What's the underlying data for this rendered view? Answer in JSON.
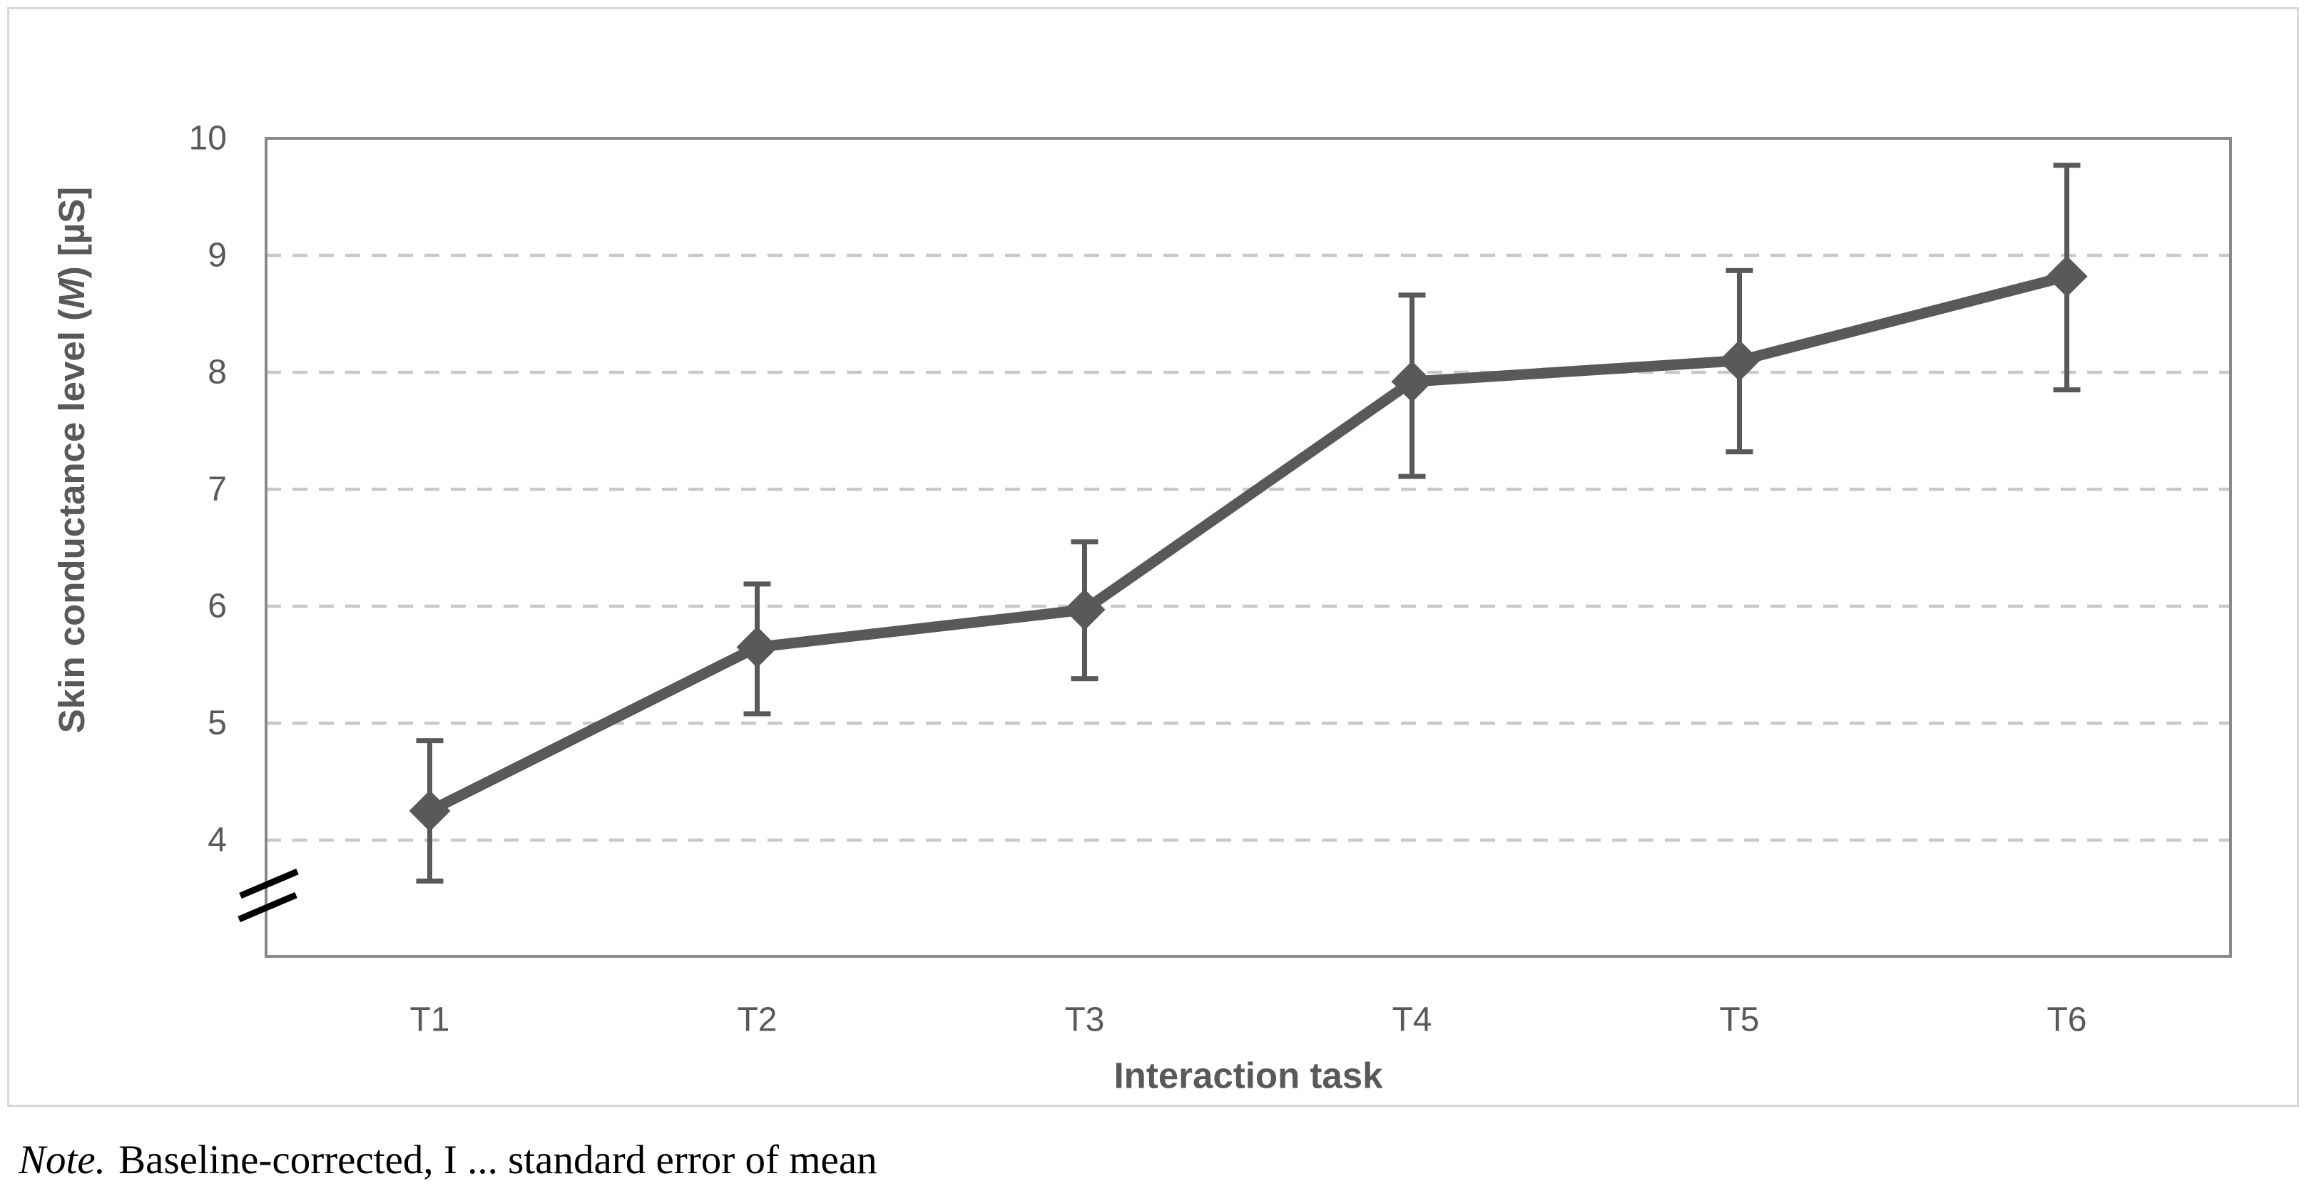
{
  "figure": {
    "kind": "line chart with error bars",
    "background": "#ffffff"
  },
  "chart_data": {
    "type": "line",
    "categories": [
      "T1",
      "T2",
      "T3",
      "T4",
      "T5",
      "T6"
    ],
    "series": [
      {
        "name": "Skin conductance level (M)",
        "values": [
          4.25,
          5.65,
          5.97,
          7.92,
          8.1,
          8.82
        ],
        "error_upper": [
          4.85,
          6.19,
          6.55,
          8.66,
          8.87,
          9.77
        ],
        "error_lower": [
          3.65,
          5.08,
          5.38,
          7.11,
          7.32,
          7.85
        ]
      }
    ],
    "title": "",
    "xlabel": "Interaction task",
    "ylabel": "Skin conductance level (M) [µS]",
    "ylabel_parts": {
      "prefix": "Skin conductance level (",
      "italic": "M",
      "suffix": ") [µS]"
    },
    "yticks": [
      4,
      5,
      6,
      7,
      8,
      9,
      10
    ],
    "ylim": [
      4,
      10
    ],
    "axis_break": true,
    "grid": "horizontal-dashed",
    "legend": false,
    "marker": "diamond",
    "colors": {
      "series": "#595959",
      "gridline": "#c9c9c9",
      "plot_border": "#898989",
      "outer_frame": "#d9d9d9",
      "tick_label": "#595959",
      "axis_title": "#595959",
      "break_mark": "#000000",
      "note": "#000000",
      "background": "#ffffff"
    }
  },
  "note": {
    "label": "Note.",
    "text": "Baseline-corrected, I ... standard error of mean"
  }
}
